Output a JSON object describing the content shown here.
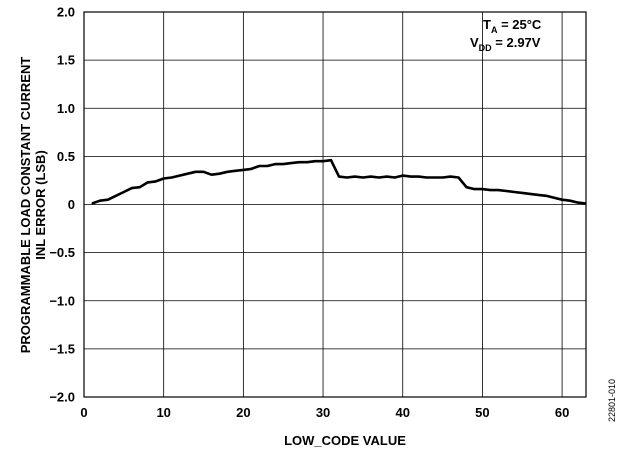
{
  "chart_data": {
    "type": "line",
    "xlabel": "LOW_CODE VALUE",
    "ylabel_line1": "PROGRAMMABLE LOAD CONSTANT CURRENT",
    "ylabel_line2": "INL ERROR (LSB)",
    "xlim": [
      0,
      63
    ],
    "ylim": [
      -2.0,
      2.0
    ],
    "grid": true,
    "x_ticks": [
      0,
      10,
      20,
      30,
      40,
      50,
      60
    ],
    "x_tick_labels": [
      "0",
      "10",
      "20",
      "30",
      "40",
      "50",
      "60"
    ],
    "y_ticks": [
      2.0,
      1.5,
      1.0,
      0.5,
      0,
      -0.5,
      -1.0,
      -1.5,
      -2.0
    ],
    "y_tick_labels": [
      "2.0",
      "1.5",
      "1.0",
      "0.5",
      "0",
      "−0.5",
      "−1.0",
      "−1.5",
      "−2.0"
    ],
    "annotation": {
      "line1_main": "T",
      "line1_sub": "A",
      "line1_rest": " = 25°C",
      "line2_main": "V",
      "line2_sub": "DD",
      "line2_rest": " = 2.97V"
    },
    "series": [
      {
        "x": [
          1,
          2,
          3,
          4,
          5,
          6,
          7,
          8,
          9,
          10,
          11,
          12,
          13,
          14,
          15,
          16,
          17,
          18,
          19,
          20,
          21,
          22,
          23,
          24,
          25,
          26,
          27,
          28,
          29,
          30,
          31,
          32,
          33,
          34,
          35,
          36,
          37,
          38,
          39,
          40,
          41,
          42,
          43,
          44,
          45,
          46,
          47,
          48,
          49,
          50,
          51,
          52,
          53,
          54,
          55,
          56,
          57,
          58,
          59,
          60,
          61,
          62,
          63
        ],
        "y": [
          0.01,
          0.04,
          0.05,
          0.09,
          0.13,
          0.17,
          0.18,
          0.23,
          0.24,
          0.27,
          0.28,
          0.3,
          0.32,
          0.34,
          0.34,
          0.31,
          0.32,
          0.34,
          0.35,
          0.36,
          0.37,
          0.4,
          0.4,
          0.42,
          0.42,
          0.43,
          0.44,
          0.44,
          0.45,
          0.45,
          0.46,
          0.29,
          0.28,
          0.29,
          0.28,
          0.29,
          0.28,
          0.29,
          0.28,
          0.3,
          0.29,
          0.29,
          0.28,
          0.28,
          0.28,
          0.29,
          0.28,
          0.18,
          0.16,
          0.16,
          0.15,
          0.15,
          0.14,
          0.13,
          0.12,
          0.11,
          0.1,
          0.09,
          0.07,
          0.05,
          0.04,
          0.02,
          0.01
        ]
      }
    ]
  },
  "figure_id": "22801-010",
  "colors": {
    "line": "#000000",
    "grid": "#000000",
    "background": "#ffffff"
  }
}
